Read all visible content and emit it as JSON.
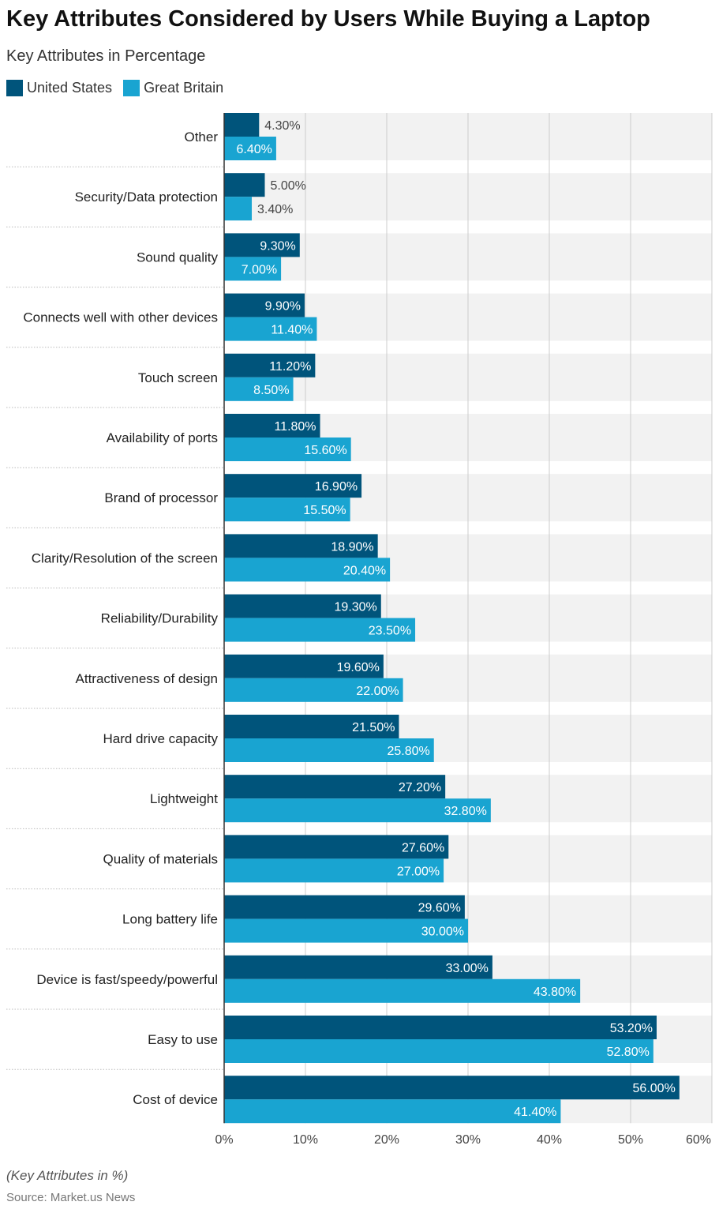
{
  "title": "Key Attributes Considered by Users While Buying a Laptop",
  "subtitle": "Key Attributes in Percentage",
  "note": "(Key Attributes in %)",
  "source": "Source: Market.us News",
  "chart_data": {
    "type": "bar",
    "orientation": "horizontal",
    "title": "Key Attributes Considered by Users While Buying a Laptop",
    "subtitle": "Key Attributes in Percentage",
    "categories": [
      "Other",
      "Security/Data protection",
      "Sound quality",
      "Connects well with other devices",
      "Touch screen",
      "Availability of ports",
      "Brand of processor",
      "Clarity/Resolution of the screen",
      "Reliability/Durability",
      "Attractiveness of design",
      "Hard drive capacity",
      "Lightweight",
      "Quality of materials",
      "Long battery life",
      "Device is fast/speedy/powerful",
      "Easy to use",
      "Cost of device"
    ],
    "series": [
      {
        "name": "United States",
        "color": "#00547b",
        "values": [
          4.3,
          5.0,
          9.3,
          9.9,
          11.2,
          11.8,
          16.9,
          18.9,
          19.3,
          19.6,
          21.5,
          27.2,
          27.6,
          29.6,
          33.0,
          53.2,
          56.0
        ]
      },
      {
        "name": "Great Britain",
        "color": "#19a4d1",
        "values": [
          6.4,
          3.4,
          7.0,
          11.4,
          8.5,
          15.6,
          15.5,
          20.4,
          23.5,
          22.0,
          25.8,
          32.8,
          27.0,
          30.0,
          43.8,
          52.8,
          41.4
        ]
      }
    ],
    "xlim": [
      0,
      60
    ],
    "xticks": [
      "0%",
      "10%",
      "20%",
      "30%",
      "40%",
      "50%",
      "60%"
    ],
    "value_format": "%.2f%",
    "grid": true,
    "legend": "top-left"
  }
}
